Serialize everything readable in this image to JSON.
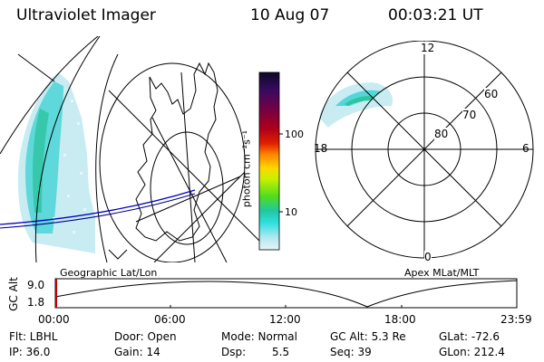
{
  "header": {
    "instrument": "Ultraviolet Imager",
    "date": "10 Aug 07",
    "time": "00:03:21 UT"
  },
  "colorbar": {
    "unit_label": "photon cm⁻²s⁻¹",
    "ticks": [
      "100",
      "10"
    ],
    "colors": [
      "#0a0a28",
      "#3a0a60",
      "#7a0040",
      "#b0001a",
      "#e02000",
      "#ff8000",
      "#ffd800",
      "#c8f000",
      "#50dc20",
      "#20c8a0",
      "#30e0e0",
      "#b0e8f0",
      "#e6f4f8"
    ]
  },
  "geo_panel": {
    "label": "Geographic Lat/Lon"
  },
  "polar_panel": {
    "label": "Apex MLat/MLT",
    "mlt_labels": [
      "12",
      "18",
      "6",
      "0"
    ],
    "lat_labels": [
      "60",
      "70",
      "80"
    ]
  },
  "altitude_plot": {
    "ylabel": "GC Alt",
    "yticks": [
      "9.0",
      "1.8"
    ],
    "xticks": [
      "00:00",
      "06:00",
      "12:00",
      "18:00",
      "23:59"
    ]
  },
  "info": {
    "filter": "Flt: LBHL",
    "door": "Door: Open",
    "mode": "Mode: Normal",
    "gc_alt": "GC Alt: 5.3 Re",
    "glat": "GLat: -72.6",
    "ip": "IP: 36.0",
    "gain": "Gain: 14",
    "dsp_label": "Dsp:",
    "dsp_value": "5.5",
    "seq": "Seq: 39",
    "glon": "GLon: 212.4"
  }
}
